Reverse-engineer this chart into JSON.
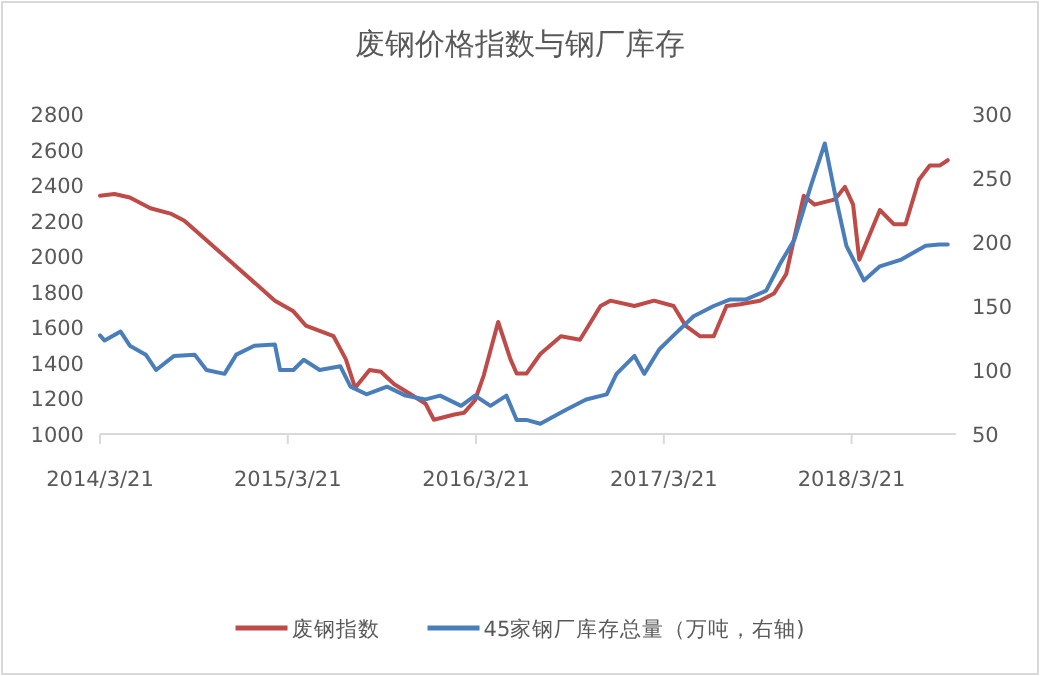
{
  "chart_data": {
    "type": "line",
    "title": "废钢价格指数与钢厂库存",
    "legend": "bottom",
    "xlim": [
      "2014-03-21",
      "2018-10-10"
    ],
    "xticks": [
      {
        "value": "2014-03-21",
        "label": "2014/3/21"
      },
      {
        "value": "2015-03-21",
        "label": "2015/3/21"
      },
      {
        "value": "2016-03-21",
        "label": "2016/3/21"
      },
      {
        "value": "2017-03-21",
        "label": "2017/3/21"
      },
      {
        "value": "2018-03-21",
        "label": "2018/3/21"
      }
    ],
    "ylim": [
      1000,
      2800
    ],
    "yticks": [
      1000,
      1200,
      1400,
      1600,
      1800,
      2000,
      2200,
      2400,
      2600,
      2800
    ],
    "y2lim": [
      50,
      300
    ],
    "y2ticks": [
      50,
      100,
      150,
      200,
      250,
      300
    ],
    "series": [
      {
        "name": "废钢指数",
        "color": "#be4b48",
        "x": [
          "2014-03-21",
          "2014-04-18",
          "2014-05-18",
          "2014-06-27",
          "2014-08-05",
          "2014-09-01",
          "2015-02-24",
          "2015-04-01",
          "2015-04-25",
          "2015-06-18",
          "2015-07-12",
          "2015-07-30",
          "2015-08-27",
          "2015-09-18",
          "2015-10-14",
          "2015-11-14",
          "2015-12-14",
          "2015-12-30",
          "2016-02-08",
          "2016-02-27",
          "2016-03-19",
          "2016-04-05",
          "2016-05-03",
          "2016-05-27",
          "2016-06-08",
          "2016-06-27",
          "2016-07-24",
          "2016-09-02",
          "2016-10-09",
          "2016-11-18",
          "2016-12-07",
          "2017-01-23",
          "2017-03-02",
          "2017-04-09",
          "2017-05-02",
          "2017-05-30",
          "2017-06-26",
          "2017-07-21",
          "2017-08-17",
          "2017-09-24",
          "2017-10-21",
          "2017-11-14",
          "2017-12-18",
          "2018-01-08",
          "2018-02-17",
          "2018-03-08",
          "2018-03-24",
          "2018-04-05",
          "2018-05-15",
          "2018-06-11",
          "2018-07-04",
          "2018-07-30",
          "2018-08-20",
          "2018-09-08",
          "2018-09-24"
        ],
        "values": [
          2340,
          2350,
          2330,
          2270,
          2240,
          2200,
          1750,
          1690,
          1610,
          1550,
          1420,
          1260,
          1360,
          1350,
          1280,
          1225,
          1170,
          1080,
          1110,
          1120,
          1190,
          1330,
          1630,
          1420,
          1340,
          1340,
          1450,
          1550,
          1530,
          1720,
          1750,
          1720,
          1750,
          1720,
          1610,
          1550,
          1550,
          1720,
          1730,
          1750,
          1790,
          1900,
          2340,
          2290,
          2320,
          2390,
          2290,
          1980,
          2260,
          2180,
          2180,
          2430,
          2510,
          2510,
          2540
        ]
      },
      {
        "name": "45家钢厂库存总量（万吨，右轴)",
        "color": "#4a7ebb",
        "axis": "y2",
        "x": [
          "2014-03-21",
          "2014-03-30",
          "2014-04-30",
          "2014-05-18",
          "2014-06-18",
          "2014-07-08",
          "2014-08-12",
          "2014-09-21",
          "2014-10-14",
          "2014-11-18",
          "2014-12-11",
          "2015-01-15",
          "2015-02-24",
          "2015-03-06",
          "2015-04-01",
          "2015-04-21",
          "2015-05-22",
          "2015-07-01",
          "2015-07-21",
          "2015-08-21",
          "2015-09-30",
          "2015-11-05",
          "2015-12-14",
          "2016-01-11",
          "2016-02-21",
          "2016-03-19",
          "2016-04-18",
          "2016-05-19",
          "2016-06-08",
          "2016-06-27",
          "2016-07-24",
          "2016-09-12",
          "2016-10-21",
          "2016-11-30",
          "2016-12-19",
          "2017-01-23",
          "2017-02-11",
          "2017-03-12",
          "2017-04-09",
          "2017-05-18",
          "2017-06-26",
          "2017-07-27",
          "2017-08-27",
          "2017-10-06",
          "2017-11-02",
          "2017-11-30",
          "2018-01-01",
          "2018-01-28",
          "2018-02-17",
          "2018-03-11",
          "2018-04-14",
          "2018-05-15",
          "2018-06-24",
          "2018-08-12",
          "2018-09-08",
          "2018-09-24"
        ],
        "values": [
          127,
          123,
          130,
          119,
          112,
          100,
          111,
          112,
          100,
          97,
          112,
          119,
          120,
          100,
          100,
          108,
          100,
          103,
          87,
          81,
          87,
          80,
          77,
          80,
          72,
          80,
          72,
          80,
          61,
          61,
          58,
          69,
          77,
          81,
          97,
          111,
          97,
          116,
          127,
          142,
          150,
          155,
          155,
          162,
          183,
          202,
          244,
          277,
          237,
          197,
          170,
          181,
          186,
          197,
          198,
          198
        ]
      }
    ]
  }
}
